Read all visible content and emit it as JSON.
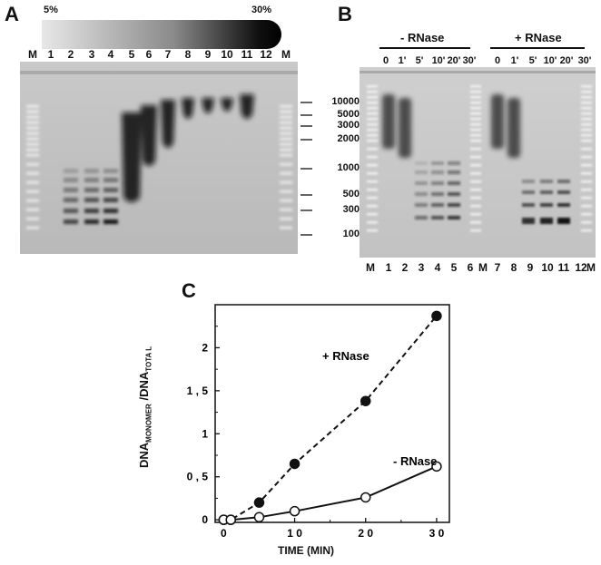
{
  "panel_a": {
    "letter": "A",
    "gradient": {
      "low": "5%",
      "high": "30%"
    },
    "lanes": [
      "M",
      "1",
      "2",
      "3",
      "4",
      "5",
      "6",
      "7",
      "8",
      "9",
      "10",
      "11",
      "12",
      "M"
    ],
    "sizes": [
      "10000",
      "5000",
      "3000",
      "2000",
      "1000",
      "500",
      "300",
      "100"
    ]
  },
  "panel_b": {
    "letter": "B",
    "minus_label": "- RNase",
    "plus_label": "+ RNase",
    "times_minus": [
      "0",
      "1'",
      "5'",
      "10'",
      "20'",
      "30'"
    ],
    "times_plus": [
      "0",
      "1'",
      "5'",
      "10'",
      "20'",
      "30'"
    ],
    "lanes": [
      "M",
      "1",
      "2",
      "3",
      "4",
      "5",
      "6",
      "M",
      "7",
      "8",
      "9",
      "10",
      "11",
      "12",
      "M"
    ]
  },
  "panel_c": {
    "letter": "C",
    "y_label_main": "DNA",
    "y_label_sub1": "MONOMER",
    "y_label_mid": " /DNA",
    "y_label_sub2": "TOTA L"
  },
  "chart_data": {
    "type": "line",
    "xlabel": "TIME (MIN)",
    "ylabel": "DNA MONOMER /DNA TOTAL",
    "xlim": [
      0,
      30
    ],
    "ylim": [
      0,
      2.5
    ],
    "xticks": [
      "0",
      "1 0",
      "2 0",
      "3 0"
    ],
    "yticks": [
      "0",
      "0 , 5",
      "1",
      "1 , 5",
      "2"
    ],
    "series": [
      {
        "name": "+ RNase",
        "marker": "filled-circle",
        "line": "dashed",
        "x": [
          0,
          1,
          5,
          10,
          20,
          30
        ],
        "y": [
          0,
          0,
          0.2,
          0.65,
          1.38,
          2.37
        ]
      },
      {
        "name": "- RNase",
        "marker": "open-circle",
        "line": "solid",
        "x": [
          0,
          1,
          5,
          10,
          20,
          30
        ],
        "y": [
          0,
          0,
          0.03,
          0.1,
          0.26,
          0.62
        ]
      }
    ]
  }
}
